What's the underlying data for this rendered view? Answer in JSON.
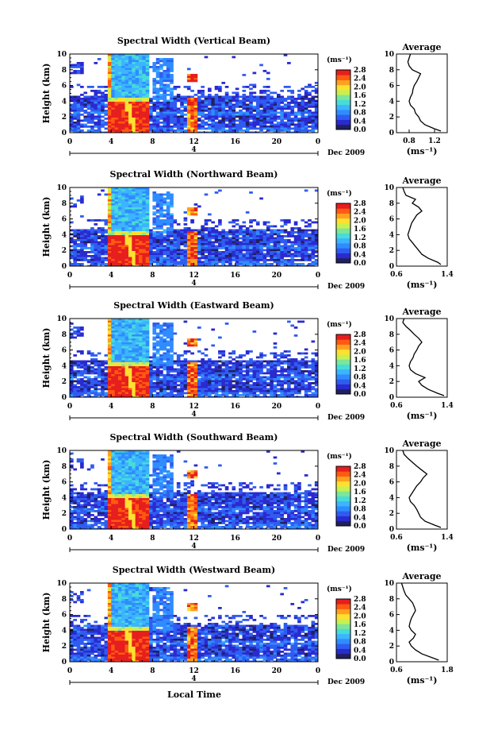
{
  "figure": {
    "xlabel": "Local Time",
    "date_label": "Dec 2009",
    "day_marker": "4",
    "colorbar_unit": "(ms⁻¹)",
    "colorbar_ticks": [
      "0.0",
      "0.4",
      "0.8",
      "1.2",
      "1.6",
      "2.0",
      "2.4",
      "2.8"
    ],
    "colorbar_colors": [
      "#202060",
      "#2a2ad0",
      "#2f5cf0",
      "#2f8cff",
      "#3cb4ff",
      "#46dcd8",
      "#7ce69a",
      "#c8f050",
      "#ffe030",
      "#ffa020",
      "#ff5a10",
      "#e61e1e"
    ],
    "profile_title": "Average",
    "profile_unit": "(ms⁻¹)"
  },
  "chart_data": [
    {
      "type": "heatmap",
      "title": "Spectral Width (Vertical Beam)",
      "ylabel": "Height (km)",
      "xlim": [
        0,
        24
      ],
      "ylim": [
        0,
        10
      ],
      "xticks": [
        "0",
        "4",
        "8",
        "12",
        "16",
        "20",
        "0"
      ],
      "yticks": [
        "0",
        "2",
        "4",
        "6",
        "8",
        "10"
      ],
      "profile": {
        "type": "line",
        "title": "Average",
        "xlabel": "(ms⁻¹)",
        "xlim": [
          0.6,
          1.4
        ],
        "xticks": [
          "0.8",
          "1.2"
        ],
        "yticks": [
          "0",
          "2",
          "4",
          "6",
          "8",
          "10"
        ],
        "height": [
          0.2,
          0.5,
          1.0,
          1.5,
          2.0,
          2.5,
          3.0,
          3.5,
          4.0,
          4.5,
          5.0,
          5.5,
          6.0,
          6.5,
          7.0,
          7.5,
          8.0,
          8.5,
          9.0,
          9.5,
          10.0
        ],
        "width": [
          1.3,
          1.2,
          1.05,
          0.98,
          0.95,
          0.9,
          0.88,
          0.82,
          0.8,
          0.82,
          0.85,
          0.86,
          0.88,
          0.92,
          0.95,
          0.98,
          0.85,
          0.8,
          0.78,
          0.8,
          0.82
        ]
      }
    },
    {
      "type": "heatmap",
      "title": "Spectral Width (Northward Beam)",
      "ylabel": "Height (km)",
      "xlim": [
        0,
        24
      ],
      "ylim": [
        0,
        10
      ],
      "xticks": [
        "0",
        "4",
        "8",
        "12",
        "16",
        "20",
        "0"
      ],
      "yticks": [
        "0",
        "2",
        "4",
        "6",
        "8",
        "10"
      ],
      "profile": {
        "type": "line",
        "title": "Average",
        "xlabel": "(ms⁻¹)",
        "xlim": [
          0.6,
          1.4
        ],
        "xticks": [
          "0.6",
          "1.4"
        ],
        "yticks": [
          "0",
          "2",
          "4",
          "6",
          "8",
          "10"
        ],
        "height": [
          0.2,
          0.5,
          1.0,
          1.5,
          2.0,
          2.5,
          3.0,
          3.5,
          4.0,
          4.5,
          5.0,
          5.5,
          6.0,
          6.5,
          7.0,
          7.5,
          8.0,
          8.5,
          9.0,
          9.5,
          10.0
        ],
        "width": [
          1.3,
          1.25,
          1.1,
          1.0,
          0.95,
          0.9,
          0.85,
          0.8,
          0.78,
          0.8,
          0.82,
          0.84,
          0.88,
          0.92,
          1.0,
          0.95,
          0.85,
          0.9,
          0.75,
          0.72,
          0.7
        ]
      }
    },
    {
      "type": "heatmap",
      "title": "Spectral Width (Eastward Beam)",
      "ylabel": "Height (km)",
      "xlim": [
        0,
        24
      ],
      "ylim": [
        0,
        10
      ],
      "xticks": [
        "0",
        "4",
        "8",
        "12",
        "16",
        "20",
        "0"
      ],
      "yticks": [
        "0",
        "2",
        "4",
        "6",
        "8",
        "10"
      ],
      "profile": {
        "type": "line",
        "title": "Average",
        "xlabel": "(ms⁻¹)",
        "xlim": [
          0.6,
          1.4
        ],
        "xticks": [
          "0.6",
          "1.4"
        ],
        "yticks": [
          "0",
          "2",
          "4",
          "6",
          "8",
          "10"
        ],
        "height": [
          0.2,
          0.5,
          1.0,
          1.5,
          2.0,
          2.5,
          3.0,
          3.5,
          4.0,
          4.5,
          5.0,
          5.5,
          6.0,
          6.5,
          7.0,
          7.5,
          8.0,
          8.5,
          9.0,
          9.5,
          10.0
        ],
        "width": [
          1.35,
          1.25,
          1.1,
          1.0,
          0.95,
          1.05,
          0.9,
          0.82,
          0.8,
          0.82,
          0.86,
          0.88,
          0.92,
          0.95,
          1.0,
          0.95,
          0.88,
          0.82,
          0.75,
          0.7,
          0.72
        ]
      }
    },
    {
      "type": "heatmap",
      "title": "Spectral Width (Southward Beam)",
      "ylabel": "Height (km)",
      "xlim": [
        0,
        24
      ],
      "ylim": [
        0,
        10
      ],
      "xticks": [
        "0",
        "4",
        "8",
        "12",
        "16",
        "20",
        "0"
      ],
      "yticks": [
        "0",
        "2",
        "4",
        "6",
        "8",
        "10"
      ],
      "profile": {
        "type": "line",
        "title": "Average",
        "xlabel": "(ms⁻¹)",
        "xlim": [
          0.6,
          1.4
        ],
        "xticks": [
          "0.6",
          "1.4"
        ],
        "yticks": [
          "0",
          "2",
          "4",
          "6",
          "8",
          "10"
        ],
        "height": [
          0.2,
          0.5,
          1.0,
          1.5,
          2.0,
          2.5,
          3.0,
          3.5,
          4.0,
          4.5,
          5.0,
          5.5,
          6.0,
          6.5,
          7.0,
          7.5,
          8.0,
          8.5,
          9.0,
          9.5,
          10.0
        ],
        "width": [
          1.3,
          1.2,
          1.05,
          0.98,
          0.95,
          0.92,
          0.88,
          0.82,
          0.8,
          0.84,
          0.88,
          0.92,
          0.98,
          1.02,
          1.08,
          1.0,
          0.92,
          0.85,
          0.78,
          0.72,
          0.7
        ]
      }
    },
    {
      "type": "heatmap",
      "title": "Spectral Width (Westward Beam)",
      "ylabel": "Height (km)",
      "xlim": [
        0,
        24
      ],
      "ylim": [
        0,
        10
      ],
      "xticks": [
        "0",
        "4",
        "8",
        "12",
        "16",
        "20",
        "0"
      ],
      "yticks": [
        "0",
        "2",
        "4",
        "6",
        "8",
        "10"
      ],
      "profile": {
        "type": "line",
        "title": "Average",
        "xlabel": "(ms⁻¹)",
        "xlim": [
          0.6,
          1.8
        ],
        "xticks": [
          "0.6",
          "1.8"
        ],
        "yticks": [
          "0",
          "2",
          "4",
          "6",
          "8",
          "10"
        ],
        "height": [
          0.2,
          0.5,
          1.0,
          1.5,
          2.0,
          2.5,
          3.0,
          3.5,
          4.0,
          4.5,
          5.0,
          5.5,
          6.0,
          6.5,
          7.0,
          7.5,
          8.0,
          8.5,
          9.0,
          9.5,
          10.0
        ],
        "width": [
          1.6,
          1.45,
          1.2,
          1.05,
          0.95,
          0.9,
          1.0,
          1.05,
          0.95,
          0.9,
          0.92,
          0.95,
          1.0,
          1.05,
          1.02,
          0.98,
          0.9,
          0.82,
          0.78,
          0.75,
          0.72
        ]
      }
    }
  ]
}
